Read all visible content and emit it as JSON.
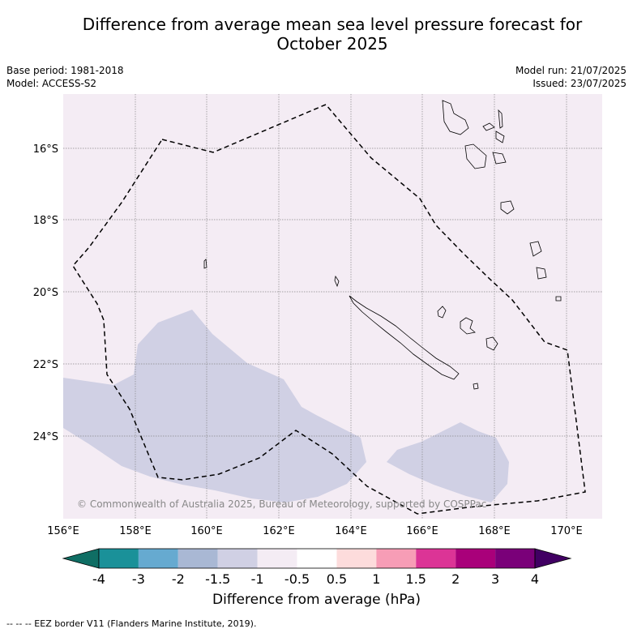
{
  "title_line1": "Difference from average mean sea level pressure forecast for",
  "title_line2": "October 2025",
  "base_period": "Base period: 1981-2018",
  "model": "Model: ACCESS-S2",
  "model_run": "Model run: 21/07/2025",
  "issued": "Issued: 23/07/2025",
  "copyright": "© Commonwealth of Australia 2025, Bureau of Meteorology, supported by COSPPac",
  "lat_labels": [
    "16°S",
    "18°S",
    "20°S",
    "22°S",
    "24°S"
  ],
  "lon_labels": [
    "156°E",
    "158°E",
    "160°E",
    "162°E",
    "164°E",
    "166°E",
    "168°E",
    "170°E"
  ],
  "colorbar": {
    "label": "Difference from average (hPa)",
    "tick_labels": [
      "-4",
      "-3",
      "-2",
      "-1.5",
      "-1",
      "-0.5",
      "0.5",
      "1",
      "1.5",
      "2",
      "3",
      "4"
    ],
    "colors": [
      "#0f6e64",
      "#1a9199",
      "#66aad0",
      "#a9b8d4",
      "#d0d0e4",
      "#f4ecf4",
      "#ffffff",
      "#fddcdc",
      "#f79db6",
      "#dc3496",
      "#a9007a",
      "#7a0079",
      "#410063"
    ]
  },
  "footnote": "-- -- -- EEZ border V11 (Flanders Marine Institute, 2019).",
  "colors": {
    "background_field": "#f4ecf4",
    "negative_anomaly": "#d0d0e4",
    "grid": "#888888"
  }
}
